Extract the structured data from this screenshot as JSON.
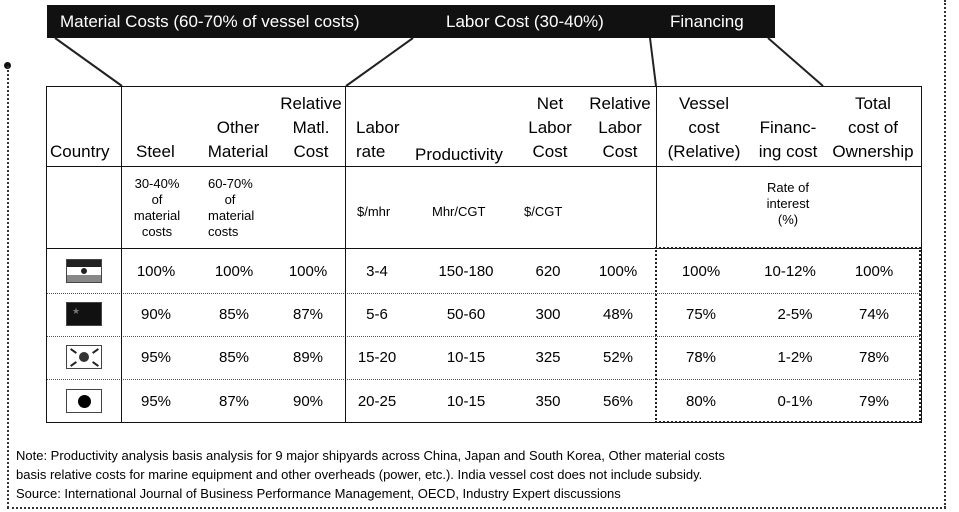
{
  "header": {
    "material_costs": "Material Costs (60-70% of vessel costs)",
    "labor_cost": "Labor Cost (30-40%)",
    "financing": "Financing"
  },
  "columns": {
    "country": "Country",
    "steel": "Steel",
    "other_material": [
      "Other",
      "Material"
    ],
    "relative_matl_cost": [
      "Relative",
      "Matl.",
      "Cost"
    ],
    "labor_rate": [
      "Labor",
      "rate"
    ],
    "productivity": "Productivity",
    "net_labor_cost": [
      "Net",
      "Labor",
      "Cost"
    ],
    "relative_labor_cost": [
      "Relative",
      "Labor",
      "Cost"
    ],
    "vessel_cost": [
      "Vessel",
      "cost",
      "(Relative)"
    ],
    "financing_cost": [
      "Financ-",
      "ing cost"
    ],
    "total_cost_ownership": [
      "Total",
      "cost of",
      "Ownership"
    ]
  },
  "units": {
    "steel": [
      "30-40%",
      "of",
      "material",
      "costs"
    ],
    "other_material": [
      "60-70%",
      "of",
      "material",
      "costs"
    ],
    "labor_rate": "$/mhr",
    "productivity": "Mhr/CGT",
    "net_labor_cost": "$/CGT",
    "financing": [
      "Rate of",
      "interest",
      "(%)"
    ]
  },
  "rows": [
    {
      "flag": "india-flag-icon",
      "steel": "100%",
      "other": "100%",
      "rel_matl": "100%",
      "labor_rate": "3-4",
      "productivity": "150-180",
      "net_labor": "620",
      "rel_labor": "100%",
      "vessel": "100%",
      "financing": "10-12%",
      "total": "100%"
    },
    {
      "flag": "china-flag-icon",
      "steel": "90%",
      "other": "85%",
      "rel_matl": "87%",
      "labor_rate": "5-6",
      "productivity": "50-60",
      "net_labor": "300",
      "rel_labor": "48%",
      "vessel": "75%",
      "financing": "2-5%",
      "total": "74%"
    },
    {
      "flag": "south-korea-flag-icon",
      "steel": "95%",
      "other": "85%",
      "rel_matl": "89%",
      "labor_rate": "15-20",
      "productivity": "10-15",
      "net_labor": "325",
      "rel_labor": "52%",
      "vessel": "78%",
      "financing": "1-2%",
      "total": "78%"
    },
    {
      "flag": "japan-flag-icon",
      "steel": "95%",
      "other": "87%",
      "rel_matl": "90%",
      "labor_rate": "20-25",
      "productivity": "10-15",
      "net_labor": "350",
      "rel_labor": "56%",
      "vessel": "80%",
      "financing": "0-1%",
      "total": "79%"
    }
  ],
  "notes": {
    "line1": "Note: Productivity analysis basis analysis for 9 major shipyards across China, Japan and South Korea, Other material costs",
    "line2": "basis relative costs for marine equipment and other overheads (power, etc.). India vessel cost does not include subsidy.",
    "line3": "Source: International Journal of Business Performance Management, OECD, Industry Expert discussions"
  }
}
